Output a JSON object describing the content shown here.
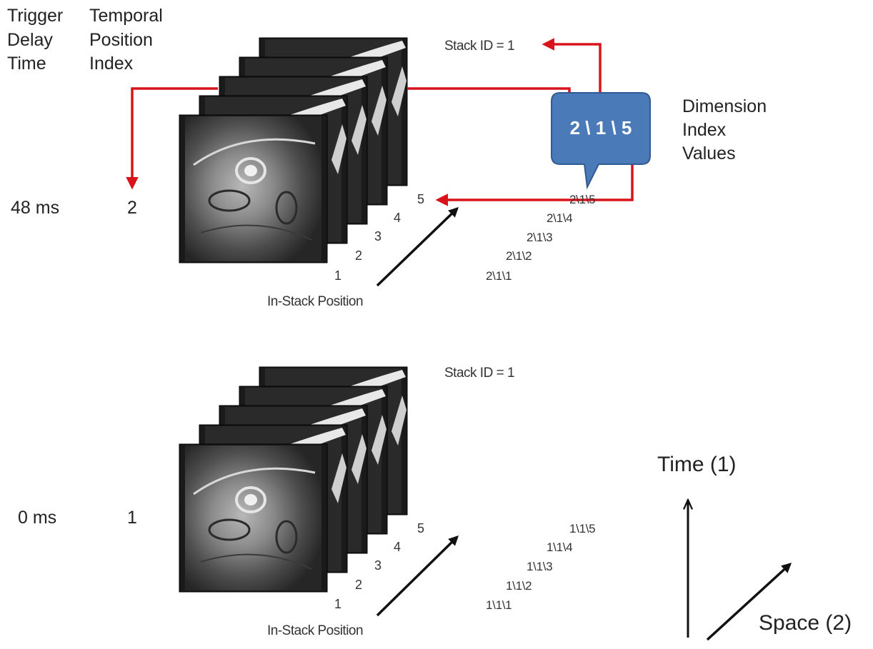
{
  "headers": {
    "trigger": [
      "Trigger",
      "Delay",
      "Time"
    ],
    "temporal": [
      "Temporal",
      "Position",
      "Index"
    ],
    "dimension": [
      "Dimension",
      "Index",
      "Values"
    ]
  },
  "colors": {
    "arrow": "#d9131b",
    "bubble_fill": "#4a7ab8",
    "bubble_stroke": "#2f5a92",
    "frame_fill": "#1a1a1a"
  },
  "top_stack": {
    "delay": "48 ms",
    "temporal_index": "2",
    "stack_id": "Stack ID = 1",
    "bubble_value": "2 \\ 1 \\ 5",
    "positions": [
      "1",
      "2",
      "3",
      "4",
      "5"
    ],
    "index_values": [
      "2\\1\\1",
      "2\\1\\2",
      "2\\1\\3",
      "2\\1\\4",
      "2\\1\\5"
    ],
    "axis_label": "In-Stack Position"
  },
  "bottom_stack": {
    "delay": "0 ms",
    "temporal_index": "1",
    "stack_id": "Stack ID = 1",
    "positions": [
      "1",
      "2",
      "3",
      "4",
      "5"
    ],
    "index_values": [
      "1\\1\\1",
      "1\\1\\2",
      "1\\1\\3",
      "1\\1\\4",
      "1\\1\\5"
    ],
    "axis_label": "In-Stack Position"
  },
  "axes": {
    "time_label": "Time (1)",
    "space_label": "Space (2)"
  }
}
